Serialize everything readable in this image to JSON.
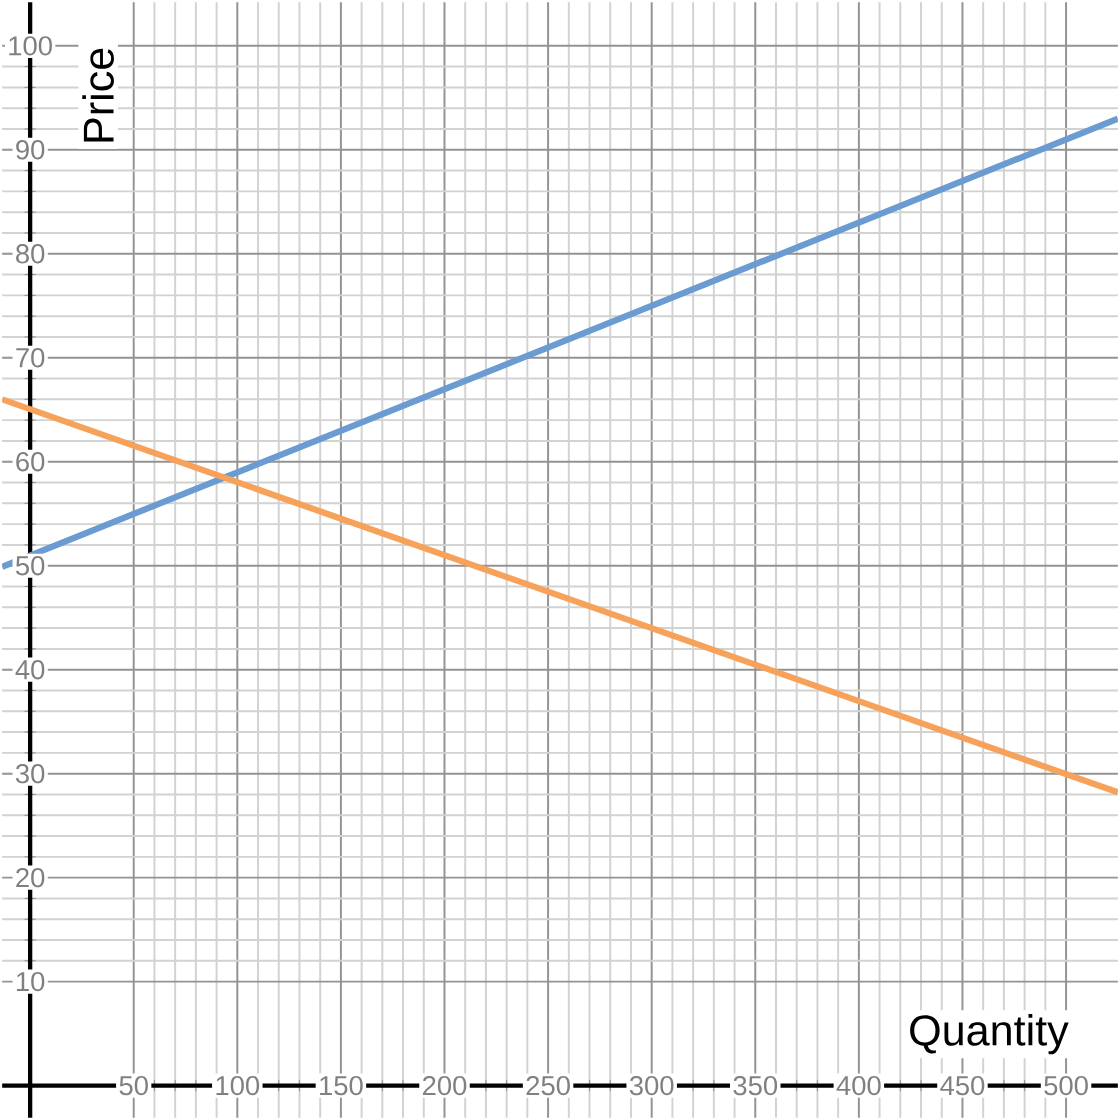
{
  "chart_data": {
    "type": "line",
    "xlabel": "Quantity",
    "ylabel": "Price",
    "x": [
      -13.5,
      525
    ],
    "series": [
      {
        "color": "#6a9bd1",
        "values": [
          49.9,
          93.0
        ]
      },
      {
        "color": "#f6a25a",
        "values": [
          66.0,
          28.2
        ]
      }
    ],
    "xlim": [
      -13.5,
      525
    ],
    "ylim": [
      -3.1,
      104.2
    ],
    "xticks": [
      50,
      100,
      150,
      200,
      250,
      300,
      350,
      400,
      450,
      500
    ],
    "yticks": [
      10,
      20,
      30,
      40,
      50,
      60,
      70,
      80,
      90,
      100
    ],
    "grid": true,
    "marker": "none"
  }
}
